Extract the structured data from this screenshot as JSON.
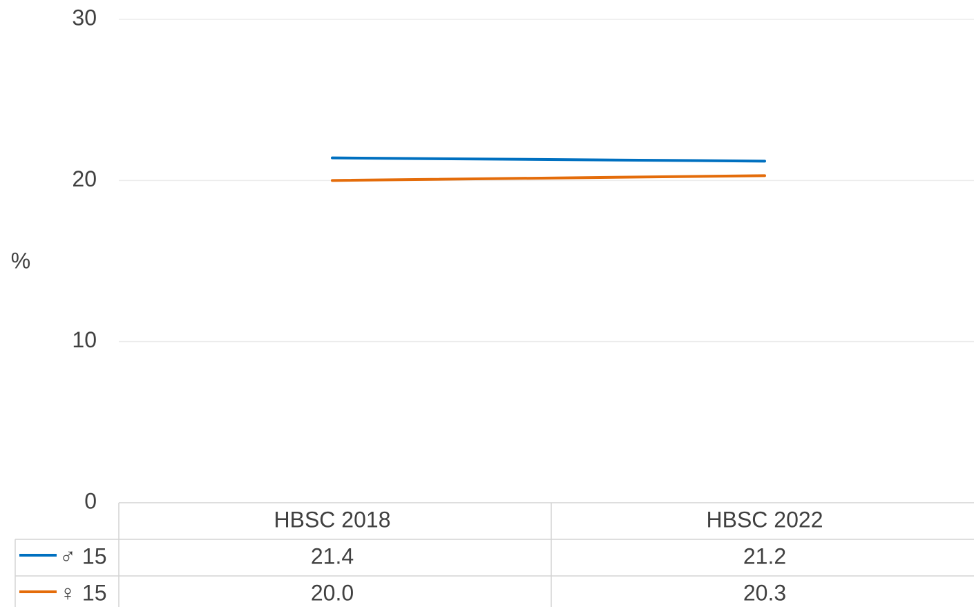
{
  "chart_data": {
    "type": "line",
    "y_label": "%",
    "categories": [
      "HBSC 2018",
      "HBSC 2022"
    ],
    "series": [
      {
        "name": "♂ 15",
        "color": "#0070c0",
        "values": [
          21.4,
          21.2
        ],
        "value_labels": [
          "21.4",
          "21.2"
        ]
      },
      {
        "name": "♀ 15",
        "color": "#e46c0a",
        "values": [
          20.0,
          20.3
        ],
        "value_labels": [
          "20.0",
          "20.3"
        ]
      }
    ],
    "ylim": [
      0,
      30
    ],
    "yticks": [
      0,
      10,
      20,
      30
    ],
    "grid": true,
    "data_table": true
  }
}
